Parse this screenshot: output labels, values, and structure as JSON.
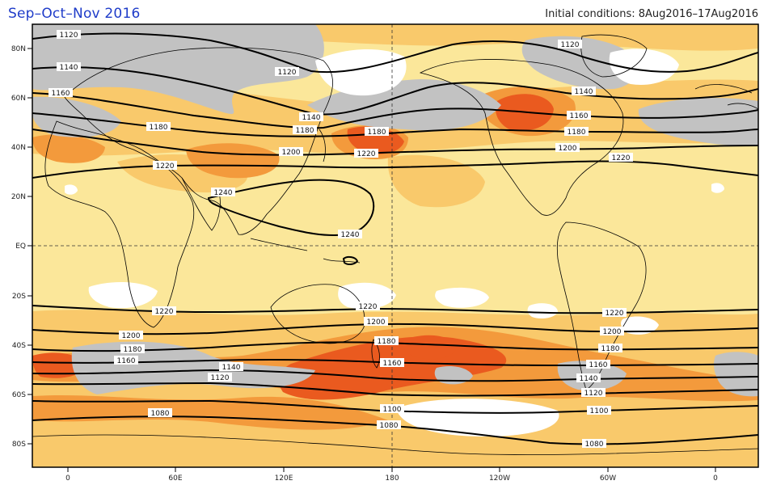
{
  "header": {
    "title": "Sep–Oct–Nov 2016",
    "subtitle": "Initial conditions: 8Aug2016–17Aug2016"
  },
  "map": {
    "projection": "cylindrical-equidistant",
    "longitude_ticks": [
      "0",
      "60E",
      "120E",
      "180",
      "120W",
      "60W",
      "0"
    ],
    "latitude_ticks": [
      "80N",
      "60N",
      "40N",
      "20N",
      "EQ",
      "20S",
      "40S",
      "60S",
      "80S"
    ],
    "colors": {
      "frame": "#000000",
      "light_yellow": "#fbe79a",
      "yellow_orange": "#f9c96b",
      "orange": "#f39a3c",
      "dark_orange": "#ea5a1f",
      "grey": "#c2c2c2",
      "white": "#ffffff",
      "contour": "#000000"
    },
    "contour_labels": {
      "1120_n_a": "1120",
      "1120_n_b": "1120",
      "1120_n_c": "1120",
      "1140_n_a": "1140",
      "1140_n_b": "1140",
      "1140_n_c": "1140",
      "1160_n_a": "1160",
      "1160_n_b": "1160",
      "1180_n_a": "1180",
      "1180_n_b": "1180",
      "1180_n_c": "1180",
      "1180_n_d": "1180",
      "1200_n_a": "1200",
      "1200_n_b": "1200",
      "1220_n_a": "1220",
      "1220_n_b": "1220",
      "1220_n_c": "1220",
      "1240_a": "1240",
      "1240_b": "1240",
      "1220_s_a": "1220",
      "1220_s_b": "1220",
      "1220_s_c": "1220",
      "1200_s_a": "1200",
      "1200_s_b": "1200",
      "1200_s_c": "1200",
      "1180_s_a": "1180",
      "1180_s_b": "1180",
      "1180_s_c": "1180",
      "1160_s_a": "1160",
      "1160_s_b": "1160",
      "1160_s_c": "1160",
      "1140_s_a": "1140",
      "1140_s_b": "1140",
      "1120_s_a": "1120",
      "1120_s_b": "1120",
      "1100_s_a": "1100",
      "1100_s_b": "1100",
      "1080_s_a": "1080",
      "1080_s_b": "1080",
      "1080_s_c": "1080"
    }
  }
}
